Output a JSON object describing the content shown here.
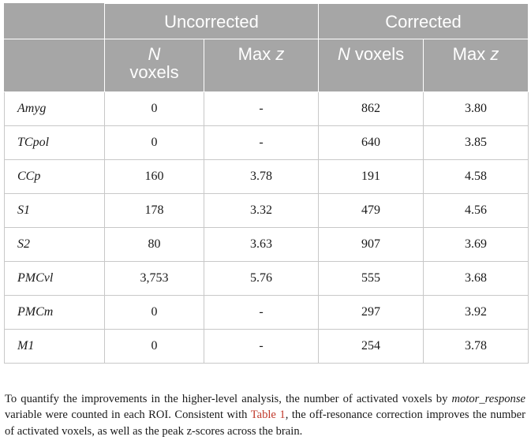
{
  "header": {
    "group_uncorrected": "Uncorrected",
    "group_corrected": "Corrected",
    "unc_n_italic": "N",
    "unc_n_rest": "voxels",
    "unc_maxz_plain": "Max ",
    "unc_maxz_italic": "z",
    "cor_n_italic": "N",
    "cor_n_rest": " voxels",
    "cor_maxz_plain": "Max ",
    "cor_maxz_italic": "z"
  },
  "rows": [
    {
      "roi": "Amyg",
      "unc_n": "0",
      "unc_z": "-",
      "cor_n": "862",
      "cor_z": "3.80"
    },
    {
      "roi": "TCpol",
      "unc_n": "0",
      "unc_z": "-",
      "cor_n": "640",
      "cor_z": "3.85"
    },
    {
      "roi": "CCp",
      "unc_n": "160",
      "unc_z": "3.78",
      "cor_n": "191",
      "cor_z": "4.58"
    },
    {
      "roi": "S1",
      "unc_n": "178",
      "unc_z": "3.32",
      "cor_n": "479",
      "cor_z": "4.56"
    },
    {
      "roi": "S2",
      "unc_n": "80",
      "unc_z": "3.63",
      "cor_n": "907",
      "cor_z": "3.69"
    },
    {
      "roi": "PMCvl",
      "unc_n": "3,753",
      "unc_z": "5.76",
      "cor_n": "555",
      "cor_z": "3.68"
    },
    {
      "roi": "PMCm",
      "unc_n": "0",
      "unc_z": "-",
      "cor_n": "297",
      "cor_z": "3.92"
    },
    {
      "roi": "M1",
      "unc_n": "0",
      "unc_z": "-",
      "cor_n": "254",
      "cor_z": "3.78"
    }
  ],
  "caption": {
    "part1": "To quantify the improvements in the higher-level analysis, the number of activated voxels by ",
    "variable": "motor_response",
    "part2": " variable were counted in each ROI. Consistent with ",
    "table_ref": "Table 1",
    "part3": ", the off-resonance correction improves the number of activated voxels, as well as the peak z-scores across the brain."
  }
}
